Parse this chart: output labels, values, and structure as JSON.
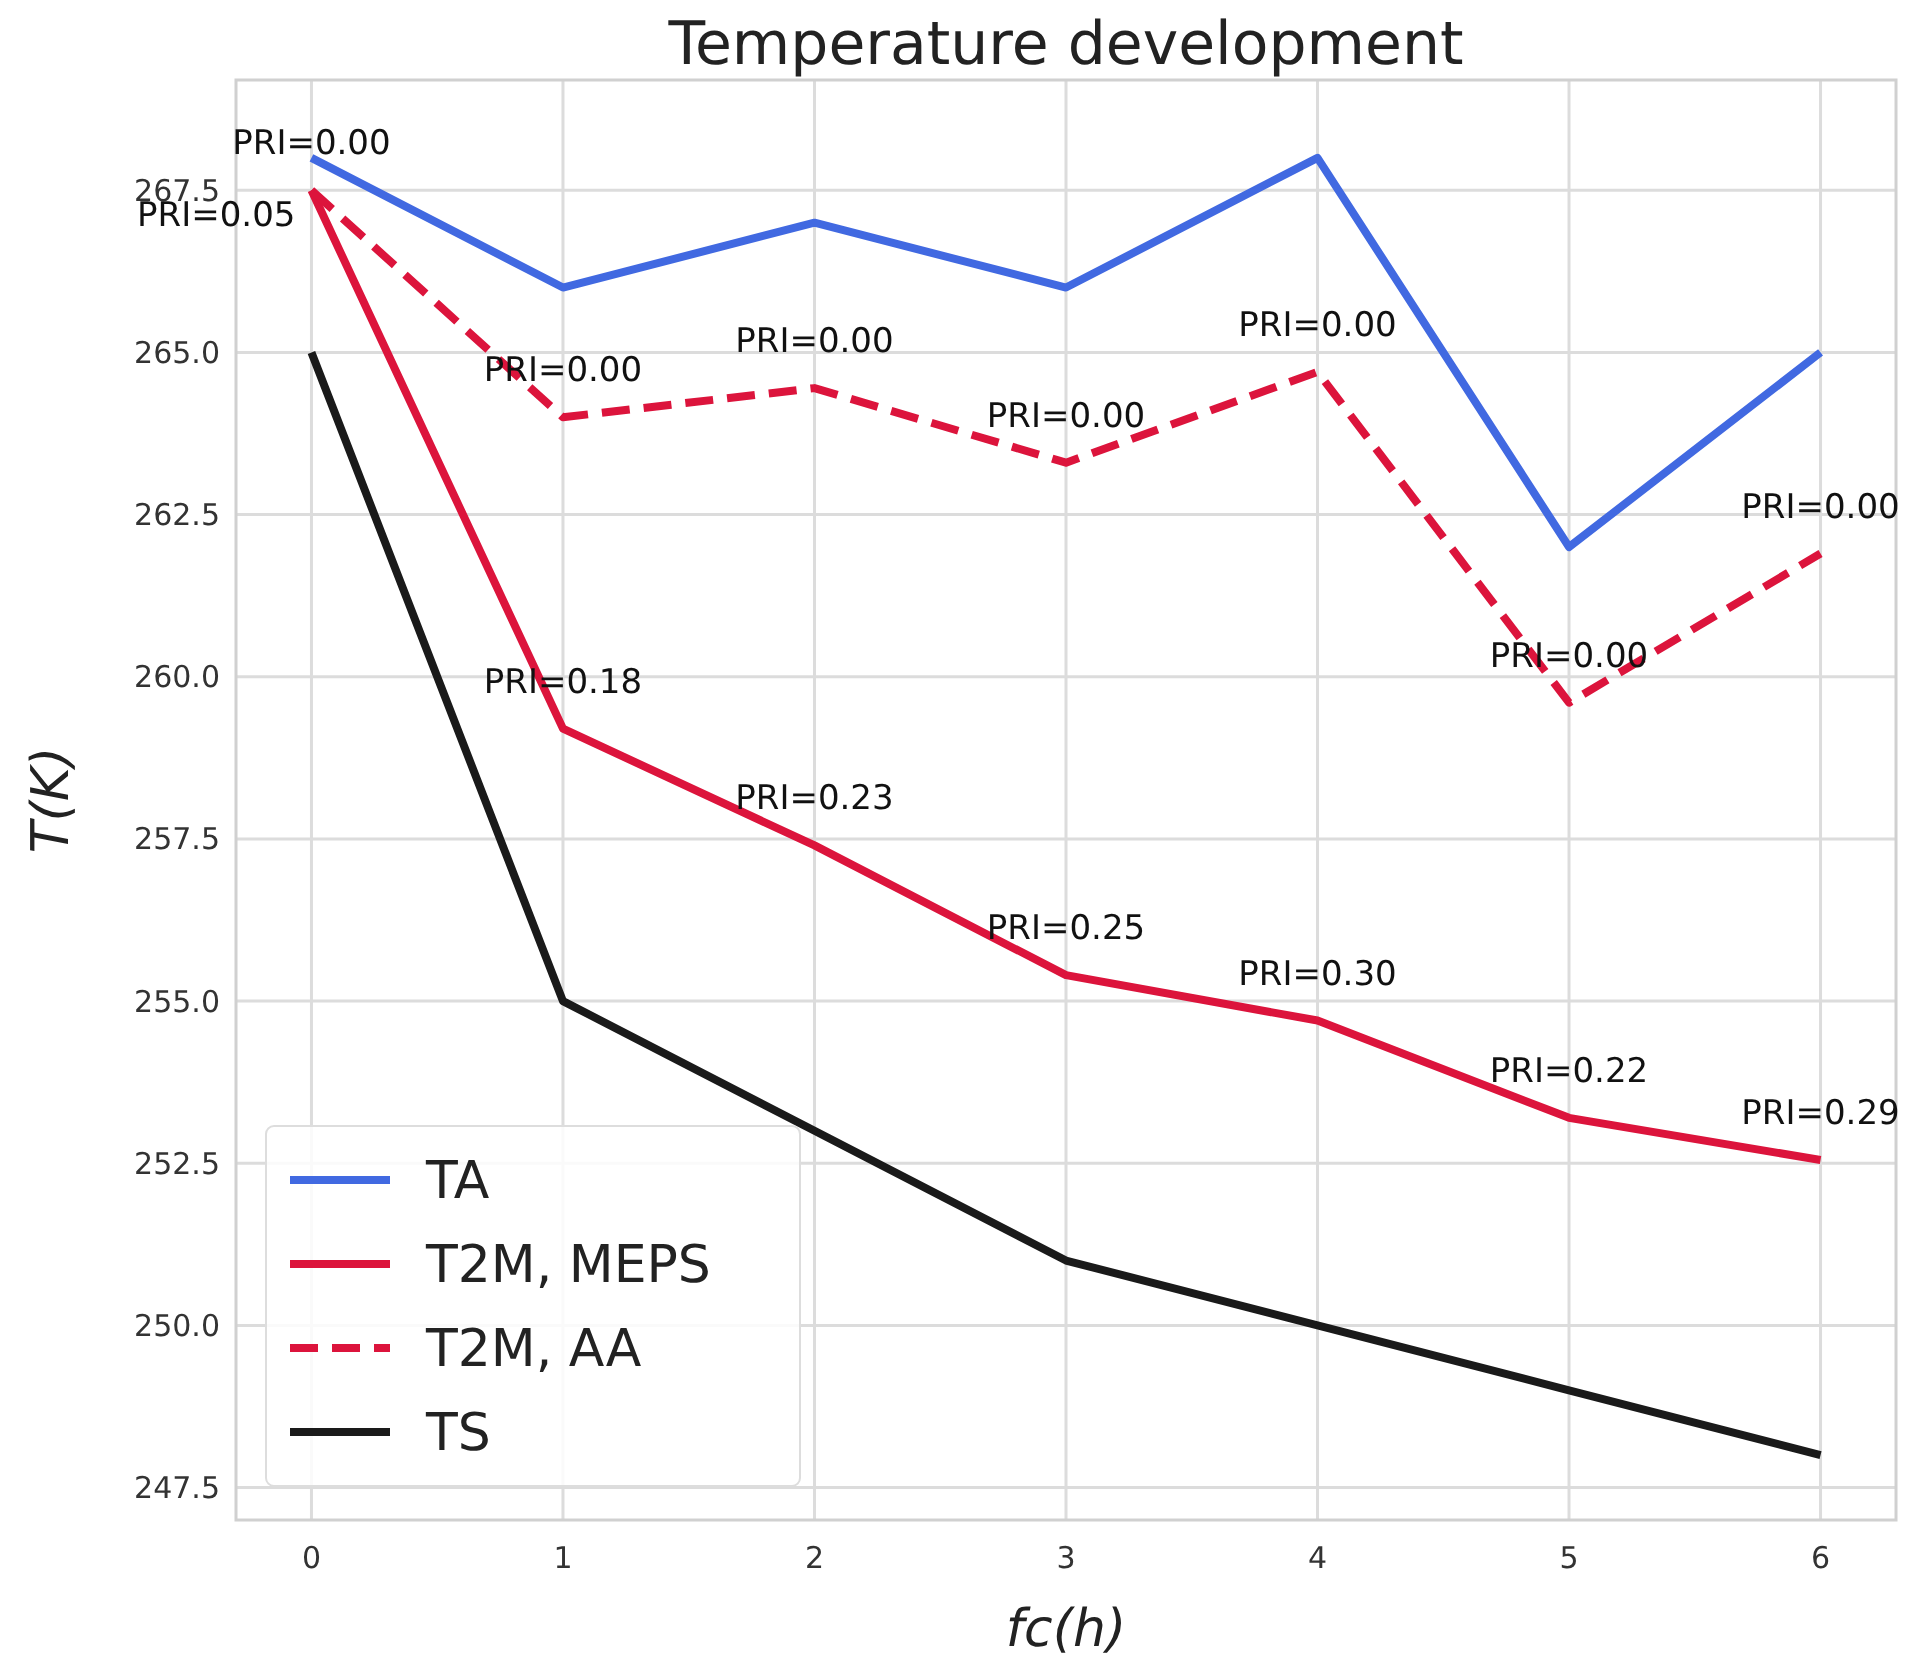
{
  "chart_data": {
    "type": "line",
    "title": "Temperature development",
    "xlabel": "fc(h)",
    "ylabel": "T(K)",
    "x": [
      0,
      1,
      2,
      3,
      4,
      5,
      6
    ],
    "series": [
      {
        "name": "TA",
        "color": "#4169e1",
        "line_style": "solid",
        "values": [
          268,
          266,
          267,
          266,
          268,
          262,
          265
        ]
      },
      {
        "name": "T2M, MEPS",
        "color": "#dc143c",
        "line_style": "solid",
        "values": [
          267.5,
          259.2,
          257.4,
          255.4,
          254.7,
          253.2,
          252.55
        ]
      },
      {
        "name": "T2M, AA",
        "color": "#dc143c",
        "line_style": "dashed",
        "values": [
          267.5,
          264.0,
          264.45,
          263.3,
          264.7,
          259.6,
          261.9
        ]
      },
      {
        "name": "TS",
        "color": "#1a1a1a",
        "line_style": "solid",
        "values": [
          265,
          255,
          253,
          251,
          250,
          249,
          248
        ]
      }
    ],
    "xlim": [
      -0.3,
      6.3
    ],
    "ylim": [
      247,
      269.2
    ],
    "xticks": [
      0,
      1,
      2,
      3,
      4,
      5,
      6
    ],
    "yticks": [
      247.5,
      {
        "value": 250,
        "label": "250.0"
      },
      252.5,
      {
        "value": 255,
        "label": "255.0"
      },
      257.5,
      {
        "value": 260,
        "label": "260.0"
      },
      262.5,
      {
        "value": 265,
        "label": "265.0"
      },
      267.5
    ],
    "grid": true,
    "legend": "bottom left",
    "marker": "none",
    "annotations": [
      {
        "text": "PRI=0.00",
        "x": 0,
        "y": 267.5
      },
      {
        "text": "PRI=0.05",
        "x": 0,
        "y": 267.5
      },
      {
        "text": "PRI=0.18",
        "x": 1,
        "y": 259.2
      },
      {
        "text": "PRI=0.23",
        "x": 2,
        "y": 257.4
      },
      {
        "text": "PRI=0.25",
        "x": 3,
        "y": 255.4
      },
      {
        "text": "PRI=0.30",
        "x": 4,
        "y": 254.7
      },
      {
        "text": "PRI=0.22",
        "x": 5,
        "y": 253.2
      },
      {
        "text": "PRI=0.29",
        "x": 6,
        "y": 252.55
      },
      {
        "text": "PRI=0.00",
        "x": 1,
        "y": 264.0
      },
      {
        "text": "PRI=0.00",
        "x": 2,
        "y": 264.45
      },
      {
        "text": "PRI=0.00",
        "x": 3,
        "y": 263.3
      },
      {
        "text": "PRI=0.00",
        "x": 4,
        "y": 264.7
      },
      {
        "text": "PRI=0.00",
        "x": 5,
        "y": 259.6
      },
      {
        "text": "PRI=0.00",
        "x": 6,
        "y": 261.9
      }
    ]
  }
}
